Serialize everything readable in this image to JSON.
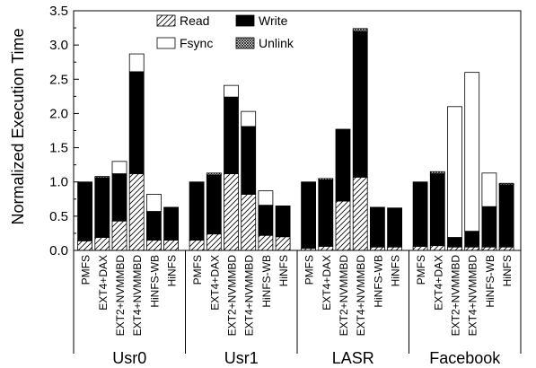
{
  "chart_data": {
    "type": "bar",
    "stacked": true,
    "ylabel": "Normalized Execution Time",
    "ylim": [
      0,
      3.5
    ],
    "yticks": [
      0.0,
      0.5,
      1.0,
      1.5,
      2.0,
      2.5,
      3.0,
      3.5
    ],
    "ytick_labels": [
      "0.0",
      "0.5",
      "1.0",
      "1.5",
      "2.0",
      "2.5",
      "3.0",
      "3.5"
    ],
    "legend_position": "top-left",
    "legend": [
      {
        "name": "Read",
        "pattern": "hatch"
      },
      {
        "name": "Write",
        "pattern": "solid"
      },
      {
        "name": "Fsync",
        "pattern": "white"
      },
      {
        "name": "Unlink",
        "pattern": "crosshatch"
      }
    ],
    "systems": [
      "PMFS",
      "EXT4+DAX",
      "EXT2+NVMMBD",
      "EXT4+NVMMBD",
      "HiNFS-WB",
      "HiNFS"
    ],
    "groups": [
      {
        "name": "Usr0",
        "bars": [
          {
            "read": 0.14,
            "write": 0.86,
            "fsync": 0.0,
            "unlink": 0.0
          },
          {
            "read": 0.19,
            "write": 0.87,
            "fsync": 0.0,
            "unlink": 0.02
          },
          {
            "read": 0.43,
            "write": 0.69,
            "fsync": 0.18,
            "unlink": 0.0
          },
          {
            "read": 1.12,
            "write": 1.49,
            "fsync": 0.26,
            "unlink": 0.0
          },
          {
            "read": 0.15,
            "write": 0.42,
            "fsync": 0.25,
            "unlink": 0.0
          },
          {
            "read": 0.15,
            "write": 0.48,
            "fsync": 0.0,
            "unlink": 0.0
          }
        ]
      },
      {
        "name": "Usr1",
        "bars": [
          {
            "read": 0.15,
            "write": 0.85,
            "fsync": 0.0,
            "unlink": 0.0
          },
          {
            "read": 0.24,
            "write": 0.86,
            "fsync": 0.0,
            "unlink": 0.03
          },
          {
            "read": 1.12,
            "write": 1.12,
            "fsync": 0.17,
            "unlink": 0.0
          },
          {
            "read": 0.82,
            "write": 0.99,
            "fsync": 0.22,
            "unlink": 0.0
          },
          {
            "read": 0.22,
            "write": 0.44,
            "fsync": 0.21,
            "unlink": 0.0
          },
          {
            "read": 0.2,
            "write": 0.45,
            "fsync": 0.0,
            "unlink": 0.0
          }
        ]
      },
      {
        "name": "LASR",
        "bars": [
          {
            "read": 0.03,
            "write": 0.97,
            "fsync": 0.0,
            "unlink": 0.0
          },
          {
            "read": 0.06,
            "write": 0.97,
            "fsync": 0.0,
            "unlink": 0.02
          },
          {
            "read": 0.72,
            "write": 1.04,
            "fsync": 0.0,
            "unlink": 0.01
          },
          {
            "read": 1.07,
            "write": 2.13,
            "fsync": 0.0,
            "unlink": 0.04
          },
          {
            "read": 0.05,
            "write": 0.58,
            "fsync": 0.0,
            "unlink": 0.0
          },
          {
            "read": 0.05,
            "write": 0.57,
            "fsync": 0.0,
            "unlink": 0.0
          }
        ]
      },
      {
        "name": "Facebook",
        "bars": [
          {
            "read": 0.06,
            "write": 0.94,
            "fsync": 0.0,
            "unlink": 0.0
          },
          {
            "read": 0.07,
            "write": 1.05,
            "fsync": 0.0,
            "unlink": 0.03
          },
          {
            "read": 0.05,
            "write": 0.14,
            "fsync": 1.91,
            "unlink": 0.0
          },
          {
            "read": 0.05,
            "write": 0.23,
            "fsync": 2.32,
            "unlink": 0.0
          },
          {
            "read": 0.05,
            "write": 0.59,
            "fsync": 0.49,
            "unlink": 0.0
          },
          {
            "read": 0.05,
            "write": 0.91,
            "fsync": 0.0,
            "unlink": 0.02
          }
        ]
      }
    ]
  }
}
